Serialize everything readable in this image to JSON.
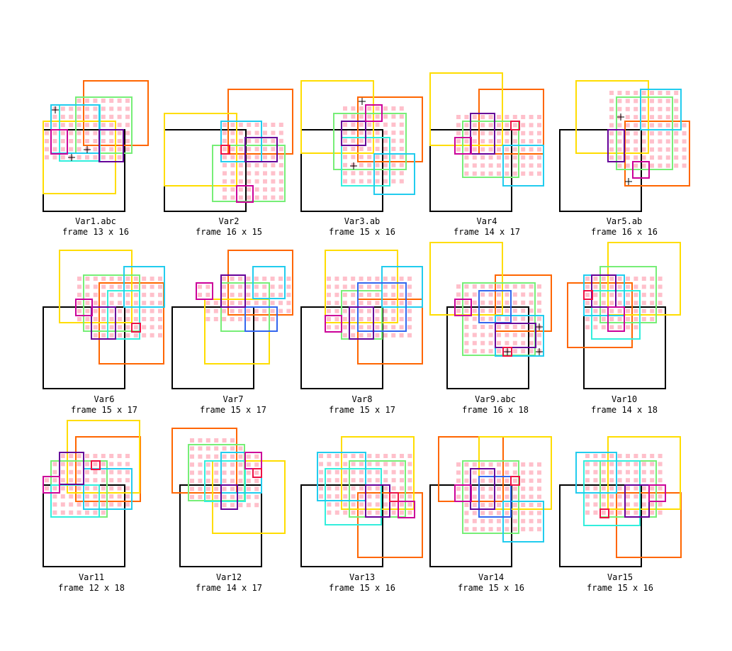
{
  "colors": {
    "frame": "#000000",
    "cell_fill": "#ffc0cb",
    "orange": "#ff6600",
    "yellow": "#ffdd00",
    "green": "#77ee77",
    "teal": "#33eedd",
    "cyan": "#22ccee",
    "blue": "#3366ee",
    "purple": "#660099",
    "magenta": "#cc0099",
    "red": "#ee1144"
  },
  "panels": [
    {
      "name": "Var1.abc",
      "frame": "frame 13 x 16"
    },
    {
      "name": "Var2",
      "frame": "frame 16 x 15"
    },
    {
      "name": "Var3.ab",
      "frame": "frame 15 x 16"
    },
    {
      "name": "Var4",
      "frame": "frame 14 x 17"
    },
    {
      "name": "Var5.ab",
      "frame": "frame 16 x 16"
    },
    {
      "name": "Var6",
      "frame": "frame 15 x 17"
    },
    {
      "name": "Var7",
      "frame": "frame 15 x 17"
    },
    {
      "name": "Var8",
      "frame": "frame 15 x 17"
    },
    {
      "name": "Var9.abc",
      "frame": "frame 16 x 18"
    },
    {
      "name": "Var10",
      "frame": "frame 14 x 18"
    },
    {
      "name": "Var11",
      "frame": "frame 12 x 18"
    },
    {
      "name": "Var12",
      "frame": "frame 14 x 17"
    },
    {
      "name": "Var13",
      "frame": "frame 15 x 16"
    },
    {
      "name": "Var14",
      "frame": "frame 15 x 16"
    },
    {
      "name": "Var15",
      "frame": "frame 15 x 16"
    }
  ]
}
